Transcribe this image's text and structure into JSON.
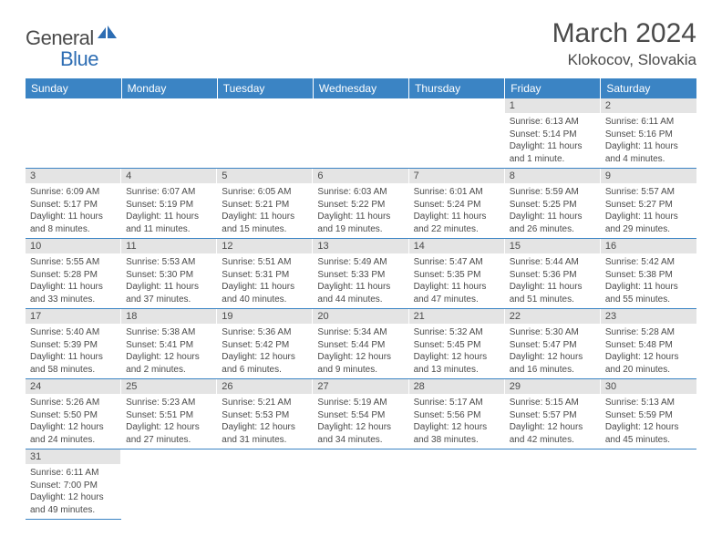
{
  "logo": {
    "general": "General",
    "blue": "Blue"
  },
  "title": "March 2024",
  "location": "Klokocov, Slovakia",
  "colors": {
    "header_bg": "#3b84c4",
    "header_text": "#ffffff",
    "daynum_bg": "#e4e4e4",
    "text": "#4a4a4a",
    "border": "#3b84c4"
  },
  "daysOfWeek": [
    "Sunday",
    "Monday",
    "Tuesday",
    "Wednesday",
    "Thursday",
    "Friday",
    "Saturday"
  ],
  "weeks": [
    [
      null,
      null,
      null,
      null,
      null,
      {
        "n": "1",
        "sr": "6:13 AM",
        "ss": "5:14 PM",
        "dl": "11 hours and 1 minute."
      },
      {
        "n": "2",
        "sr": "6:11 AM",
        "ss": "5:16 PM",
        "dl": "11 hours and 4 minutes."
      }
    ],
    [
      {
        "n": "3",
        "sr": "6:09 AM",
        "ss": "5:17 PM",
        "dl": "11 hours and 8 minutes."
      },
      {
        "n": "4",
        "sr": "6:07 AM",
        "ss": "5:19 PM",
        "dl": "11 hours and 11 minutes."
      },
      {
        "n": "5",
        "sr": "6:05 AM",
        "ss": "5:21 PM",
        "dl": "11 hours and 15 minutes."
      },
      {
        "n": "6",
        "sr": "6:03 AM",
        "ss": "5:22 PM",
        "dl": "11 hours and 19 minutes."
      },
      {
        "n": "7",
        "sr": "6:01 AM",
        "ss": "5:24 PM",
        "dl": "11 hours and 22 minutes."
      },
      {
        "n": "8",
        "sr": "5:59 AM",
        "ss": "5:25 PM",
        "dl": "11 hours and 26 minutes."
      },
      {
        "n": "9",
        "sr": "5:57 AM",
        "ss": "5:27 PM",
        "dl": "11 hours and 29 minutes."
      }
    ],
    [
      {
        "n": "10",
        "sr": "5:55 AM",
        "ss": "5:28 PM",
        "dl": "11 hours and 33 minutes."
      },
      {
        "n": "11",
        "sr": "5:53 AM",
        "ss": "5:30 PM",
        "dl": "11 hours and 37 minutes."
      },
      {
        "n": "12",
        "sr": "5:51 AM",
        "ss": "5:31 PM",
        "dl": "11 hours and 40 minutes."
      },
      {
        "n": "13",
        "sr": "5:49 AM",
        "ss": "5:33 PM",
        "dl": "11 hours and 44 minutes."
      },
      {
        "n": "14",
        "sr": "5:47 AM",
        "ss": "5:35 PM",
        "dl": "11 hours and 47 minutes."
      },
      {
        "n": "15",
        "sr": "5:44 AM",
        "ss": "5:36 PM",
        "dl": "11 hours and 51 minutes."
      },
      {
        "n": "16",
        "sr": "5:42 AM",
        "ss": "5:38 PM",
        "dl": "11 hours and 55 minutes."
      }
    ],
    [
      {
        "n": "17",
        "sr": "5:40 AM",
        "ss": "5:39 PM",
        "dl": "11 hours and 58 minutes."
      },
      {
        "n": "18",
        "sr": "5:38 AM",
        "ss": "5:41 PM",
        "dl": "12 hours and 2 minutes."
      },
      {
        "n": "19",
        "sr": "5:36 AM",
        "ss": "5:42 PM",
        "dl": "12 hours and 6 minutes."
      },
      {
        "n": "20",
        "sr": "5:34 AM",
        "ss": "5:44 PM",
        "dl": "12 hours and 9 minutes."
      },
      {
        "n": "21",
        "sr": "5:32 AM",
        "ss": "5:45 PM",
        "dl": "12 hours and 13 minutes."
      },
      {
        "n": "22",
        "sr": "5:30 AM",
        "ss": "5:47 PM",
        "dl": "12 hours and 16 minutes."
      },
      {
        "n": "23",
        "sr": "5:28 AM",
        "ss": "5:48 PM",
        "dl": "12 hours and 20 minutes."
      }
    ],
    [
      {
        "n": "24",
        "sr": "5:26 AM",
        "ss": "5:50 PM",
        "dl": "12 hours and 24 minutes."
      },
      {
        "n": "25",
        "sr": "5:23 AM",
        "ss": "5:51 PM",
        "dl": "12 hours and 27 minutes."
      },
      {
        "n": "26",
        "sr": "5:21 AM",
        "ss": "5:53 PM",
        "dl": "12 hours and 31 minutes."
      },
      {
        "n": "27",
        "sr": "5:19 AM",
        "ss": "5:54 PM",
        "dl": "12 hours and 34 minutes."
      },
      {
        "n": "28",
        "sr": "5:17 AM",
        "ss": "5:56 PM",
        "dl": "12 hours and 38 minutes."
      },
      {
        "n": "29",
        "sr": "5:15 AM",
        "ss": "5:57 PM",
        "dl": "12 hours and 42 minutes."
      },
      {
        "n": "30",
        "sr": "5:13 AM",
        "ss": "5:59 PM",
        "dl": "12 hours and 45 minutes."
      }
    ],
    [
      {
        "n": "31",
        "sr": "6:11 AM",
        "ss": "7:00 PM",
        "dl": "12 hours and 49 minutes."
      },
      null,
      null,
      null,
      null,
      null,
      null
    ]
  ],
  "labels": {
    "sunrise": "Sunrise:",
    "sunset": "Sunset:",
    "daylight": "Daylight:"
  }
}
